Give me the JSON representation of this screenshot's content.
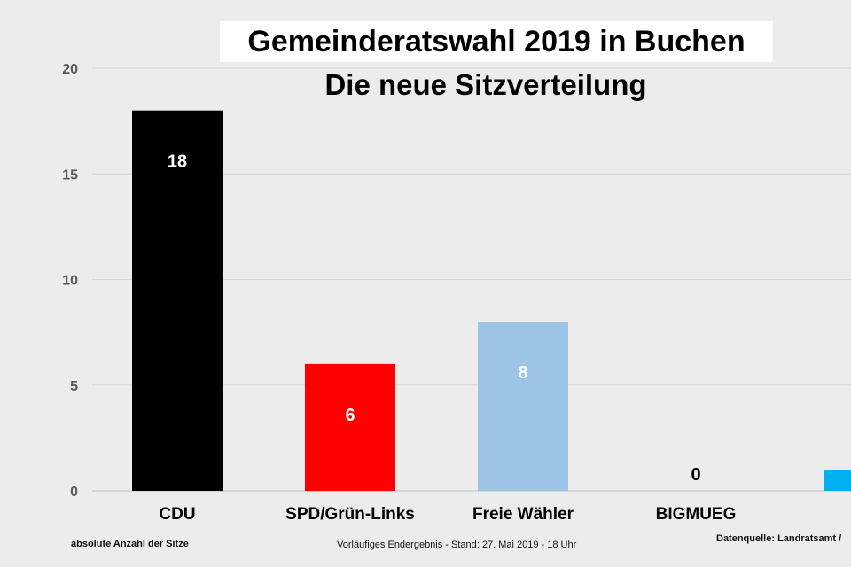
{
  "title": "Gemeinderatswahl 2019 in Buchen",
  "subtitle": "Die neue Sitzverteilung",
  "footer": {
    "left": "absolute Anzahl der Sitze",
    "middle": "Vorläufiges Endergebnis - Stand: 27. Mai 2019 - 18 Uhr",
    "right": "Datenquelle: Landratsamt /"
  },
  "chart_data": {
    "type": "bar",
    "title": "Gemeinderatswahl 2019 in Buchen",
    "subtitle": "Die neue Sitzverteilung",
    "ylabel": "absolute Anzahl der Sitze",
    "ylim": [
      0,
      20
    ],
    "yticks": [
      0,
      5,
      10,
      15,
      20
    ],
    "grid": true,
    "categories": [
      "CDU",
      "SPD/Grün-Links",
      "Freie Wähler",
      "BIGMUEG",
      ""
    ],
    "values": [
      18,
      6,
      8,
      0,
      1
    ],
    "data_labels": [
      "18",
      "6",
      "8",
      "0",
      ""
    ],
    "colors": [
      "#000000",
      "#ff0000",
      "#9dc3e6",
      "#9dc3e6",
      "#00b0f0"
    ],
    "label_colors": [
      "#ffffff",
      "#ffffff",
      "#ffffff",
      "#000000",
      "#ffffff"
    ]
  }
}
